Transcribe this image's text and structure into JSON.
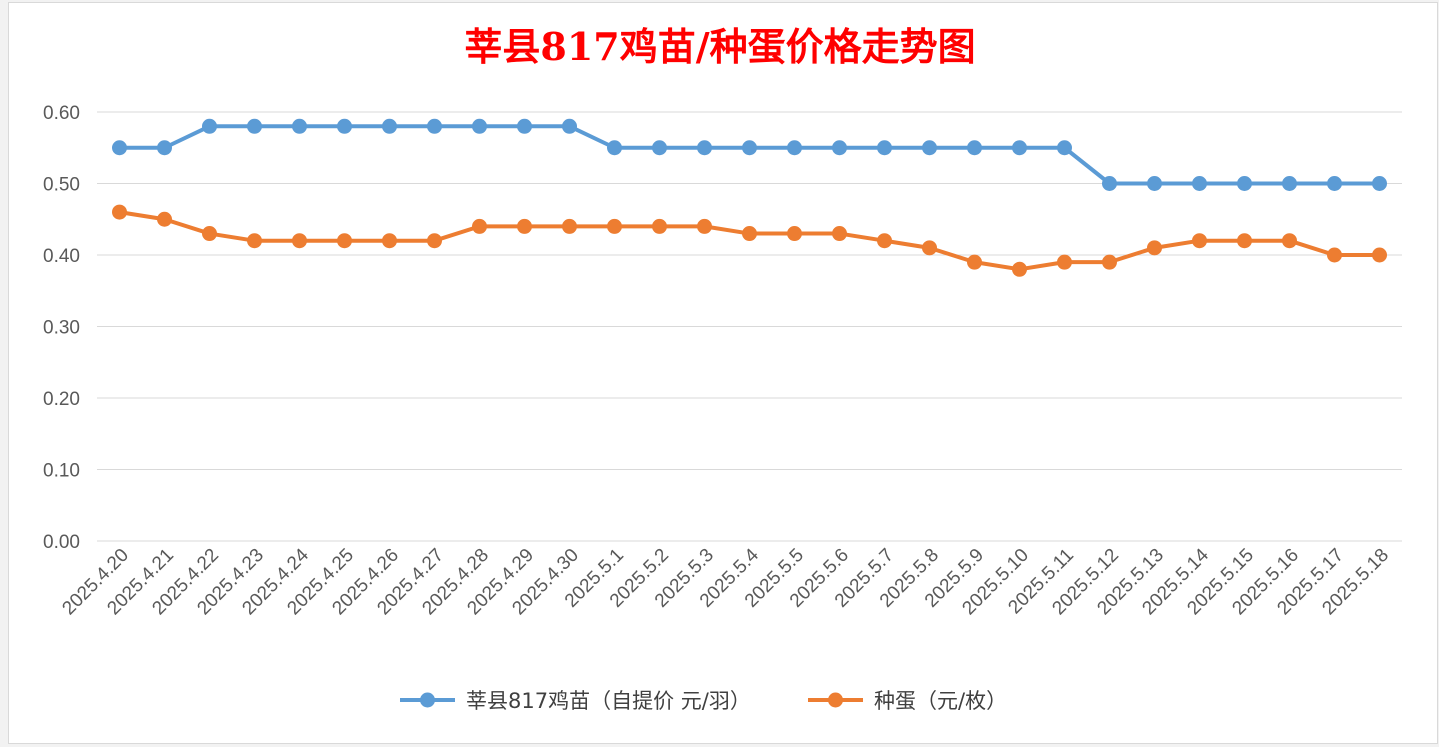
{
  "chart_data": {
    "type": "line",
    "title": "莘县817鸡苗/种蛋价格走势图",
    "xlabel": "",
    "ylabel": "",
    "ylim": [
      0,
      0.6
    ],
    "yticks": [
      "0.00",
      "0.10",
      "0.20",
      "0.30",
      "0.40",
      "0.50",
      "0.60"
    ],
    "grid": true,
    "legend_position": "bottom",
    "categories": [
      "2025.4.20",
      "2025.4.21",
      "2025.4.22",
      "2025.4.23",
      "2025.4.24",
      "2025.4.25",
      "2025.4.26",
      "2025.4.27",
      "2025.4.28",
      "2025.4.29",
      "2025.4.30",
      "2025.5.1",
      "2025.5.2",
      "2025.5.3",
      "2025.5.4",
      "2025.5.5",
      "2025.5.6",
      "2025.5.7",
      "2025.5.8",
      "2025.5.9",
      "2025.5.10",
      "2025.5.11",
      "2025.5.12",
      "2025.5.13",
      "2025.5.14",
      "2025.5.15",
      "2025.5.16",
      "2025.5.17",
      "2025.5.18"
    ],
    "series": [
      {
        "name": "莘县817鸡苗（自提价 元/羽）",
        "color": "#5b9bd5",
        "values": [
          0.55,
          0.55,
          0.58,
          0.58,
          0.58,
          0.58,
          0.58,
          0.58,
          0.58,
          0.58,
          0.58,
          0.55,
          0.55,
          0.55,
          0.55,
          0.55,
          0.55,
          0.55,
          0.55,
          0.55,
          0.55,
          0.55,
          0.5,
          0.5,
          0.5,
          0.5,
          0.5,
          0.5,
          0.5
        ]
      },
      {
        "name": "种蛋（元/枚）",
        "color": "#ed7d31",
        "values": [
          0.46,
          0.45,
          0.43,
          0.42,
          0.42,
          0.42,
          0.42,
          0.42,
          0.44,
          0.44,
          0.44,
          0.44,
          0.44,
          0.44,
          0.43,
          0.43,
          0.43,
          0.42,
          0.41,
          0.39,
          0.38,
          0.39,
          0.39,
          0.41,
          0.42,
          0.42,
          0.42,
          0.4,
          0.4
        ]
      }
    ]
  }
}
